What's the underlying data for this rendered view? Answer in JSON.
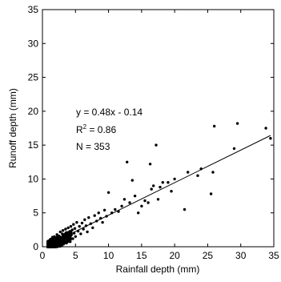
{
  "chart_data": {
    "type": "scatter",
    "xlabel": "Rainfall depth (mm)",
    "ylabel": "Runoff depth (mm)",
    "xlim": [
      0,
      35
    ],
    "ylim": [
      0,
      35
    ],
    "xticks": [
      0,
      5,
      10,
      15,
      20,
      25,
      30,
      35
    ],
    "yticks": [
      0,
      5,
      10,
      15,
      20,
      25,
      30,
      35
    ],
    "grid": false,
    "annotations": {
      "equation": "y = 0.48x - 0.14",
      "r2_prefix": "R",
      "r2_sup": "2",
      "r2_suffix": " = 0.86",
      "n": "N = 353"
    },
    "fit_line": {
      "slope": 0.48,
      "intercept": -0.14,
      "x": [
        1,
        34.5
      ]
    },
    "points": [
      [
        1.0,
        0.3
      ],
      [
        1.1,
        0.6
      ],
      [
        1.2,
        1.1
      ],
      [
        1.3,
        0.4
      ],
      [
        1.4,
        0.8
      ],
      [
        1.5,
        1.4
      ],
      [
        1.6,
        0.2
      ],
      [
        1.7,
        0.9
      ],
      [
        1.8,
        1.5
      ],
      [
        1.9,
        0.5
      ],
      [
        2.0,
        1.2
      ],
      [
        2.1,
        0.7
      ],
      [
        2.2,
        1.8
      ],
      [
        2.3,
        0.3
      ],
      [
        2.4,
        1.0
      ],
      [
        2.5,
        1.6
      ],
      [
        2.6,
        0.6
      ],
      [
        2.7,
        2.2
      ],
      [
        2.8,
        1.3
      ],
      [
        2.9,
        0.9
      ],
      [
        3.0,
        1.9
      ],
      [
        3.1,
        2.4
      ],
      [
        3.2,
        1.1
      ],
      [
        3.3,
        0.7
      ],
      [
        3.4,
        1.7
      ],
      [
        3.5,
        2.6
      ],
      [
        3.6,
        1.3
      ],
      [
        3.7,
        2.0
      ],
      [
        3.8,
        0.9
      ],
      [
        3.9,
        2.8
      ],
      [
        4.0,
        1.5
      ],
      [
        4.1,
        2.2
      ],
      [
        4.2,
        1.0
      ],
      [
        4.3,
        3.0
      ],
      [
        4.4,
        1.8
      ],
      [
        4.5,
        2.5
      ],
      [
        4.6,
        1.2
      ],
      [
        4.7,
        3.3
      ],
      [
        4.8,
        2.0
      ],
      [
        4.9,
        2.7
      ],
      [
        5.0,
        1.5
      ],
      [
        5.2,
        3.6
      ],
      [
        5.4,
        2.3
      ],
      [
        5.6,
        3.0
      ],
      [
        5.8,
        1.9
      ],
      [
        6.0,
        3.5
      ],
      [
        6.2,
        2.6
      ],
      [
        6.4,
        4.0
      ],
      [
        6.6,
        3.1
      ],
      [
        6.8,
        2.2
      ],
      [
        7.0,
        4.3
      ],
      [
        7.3,
        3.4
      ],
      [
        7.6,
        2.8
      ],
      [
        7.9,
        4.6
      ],
      [
        8.2,
        3.8
      ],
      [
        8.5,
        5.0
      ],
      [
        8.8,
        4.2
      ],
      [
        9.1,
        3.6
      ],
      [
        9.4,
        5.4
      ],
      [
        9.7,
        4.5
      ],
      [
        10.0,
        8.0
      ],
      [
        10.5,
        5.0
      ],
      [
        11.0,
        5.5
      ],
      [
        11.5,
        5.2
      ],
      [
        12.0,
        6.0
      ],
      [
        12.4,
        7.0
      ],
      [
        12.8,
        12.5
      ],
      [
        13.2,
        6.5
      ],
      [
        13.6,
        9.8
      ],
      [
        14.0,
        7.5
      ],
      [
        14.5,
        5.0
      ],
      [
        15.0,
        6.0
      ],
      [
        15.5,
        6.8
      ],
      [
        16.0,
        6.5
      ],
      [
        16.3,
        12.2
      ],
      [
        16.5,
        8.5
      ],
      [
        16.8,
        9.0
      ],
      [
        17.2,
        15.0
      ],
      [
        17.5,
        7.0
      ],
      [
        17.8,
        8.8
      ],
      [
        18.2,
        9.5
      ],
      [
        19.0,
        9.5
      ],
      [
        19.5,
        8.2
      ],
      [
        20.0,
        10.0
      ],
      [
        21.5,
        5.5
      ],
      [
        22.0,
        11.0
      ],
      [
        23.5,
        10.5
      ],
      [
        24.0,
        11.5
      ],
      [
        25.5,
        7.8
      ],
      [
        25.8,
        11.0
      ],
      [
        26.0,
        17.8
      ],
      [
        29.0,
        14.5
      ],
      [
        29.5,
        18.2
      ],
      [
        33.8,
        17.5
      ],
      [
        34.5,
        16.0
      ]
    ],
    "dense_cluster": {
      "x": [
        0.8,
        4.5
      ],
      "y": [
        0.0,
        3.2
      ],
      "count": 256,
      "note": "many overlapping points near origin"
    }
  }
}
